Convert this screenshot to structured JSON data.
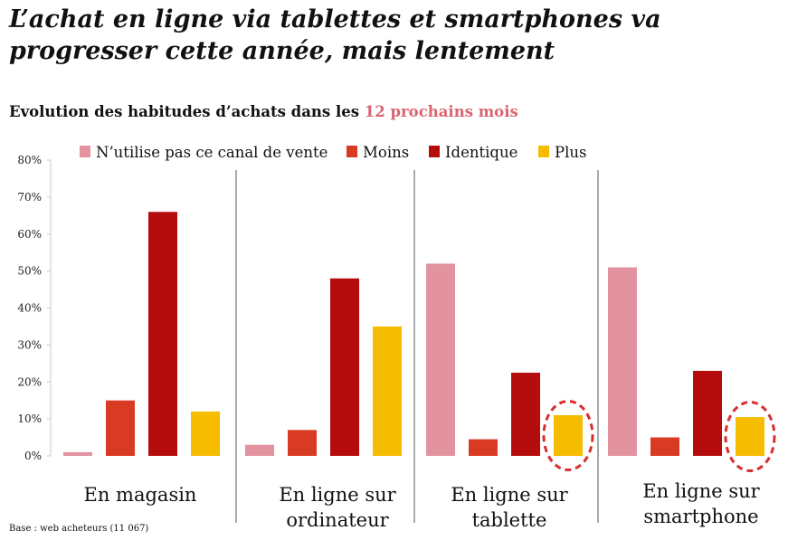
{
  "title": {
    "line1": "L’achat en ligne via tablettes et smartphones va",
    "line2": "progresser cette année, mais lentement"
  },
  "subtitle": {
    "main": "Evolution des habitudes d’achats dans les",
    "highlight": "12 prochains mois"
  },
  "footnote": "Base : web acheteurs (11 067)",
  "colors": {
    "pink": "#e2939f",
    "orange_red": "#d93a24",
    "dark_red": "#b50d0d",
    "yellow": "#f5bc00",
    "highlight": "#d96470",
    "circle": "#d62f2f"
  },
  "chart_data": {
    "type": "bar",
    "ylim": [
      0,
      80
    ],
    "yticks": [
      0,
      10,
      20,
      30,
      40,
      50,
      60,
      70,
      80
    ],
    "ytick_labels": [
      "0%",
      "10%",
      "20%",
      "30%",
      "40%",
      "50%",
      "60%",
      "70%",
      "80%"
    ],
    "legend_position": "top",
    "categories": [
      [
        "En magasin"
      ],
      [
        "En ligne sur",
        "ordinateur"
      ],
      [
        "En ligne sur",
        "tablette"
      ],
      [
        "En ligne sur",
        "smartphone"
      ]
    ],
    "series": [
      {
        "name": "N’utilise pas ce canal de vente",
        "color": "#e2939f",
        "values": [
          1,
          3,
          52,
          51
        ]
      },
      {
        "name": "Moins",
        "color": "#d93a24",
        "values": [
          15,
          7,
          4.5,
          5
        ]
      },
      {
        "name": "Identique",
        "color": "#b50d0d",
        "values": [
          66,
          48,
          22.5,
          23
        ]
      },
      {
        "name": "Plus",
        "color": "#f5bc00",
        "values": [
          12,
          35,
          11,
          10.5
        ]
      }
    ],
    "annotations": [
      {
        "type": "dashed-circle",
        "series": "Plus",
        "category_index": 2
      },
      {
        "type": "dashed-circle",
        "series": "Plus",
        "category_index": 3
      }
    ]
  }
}
